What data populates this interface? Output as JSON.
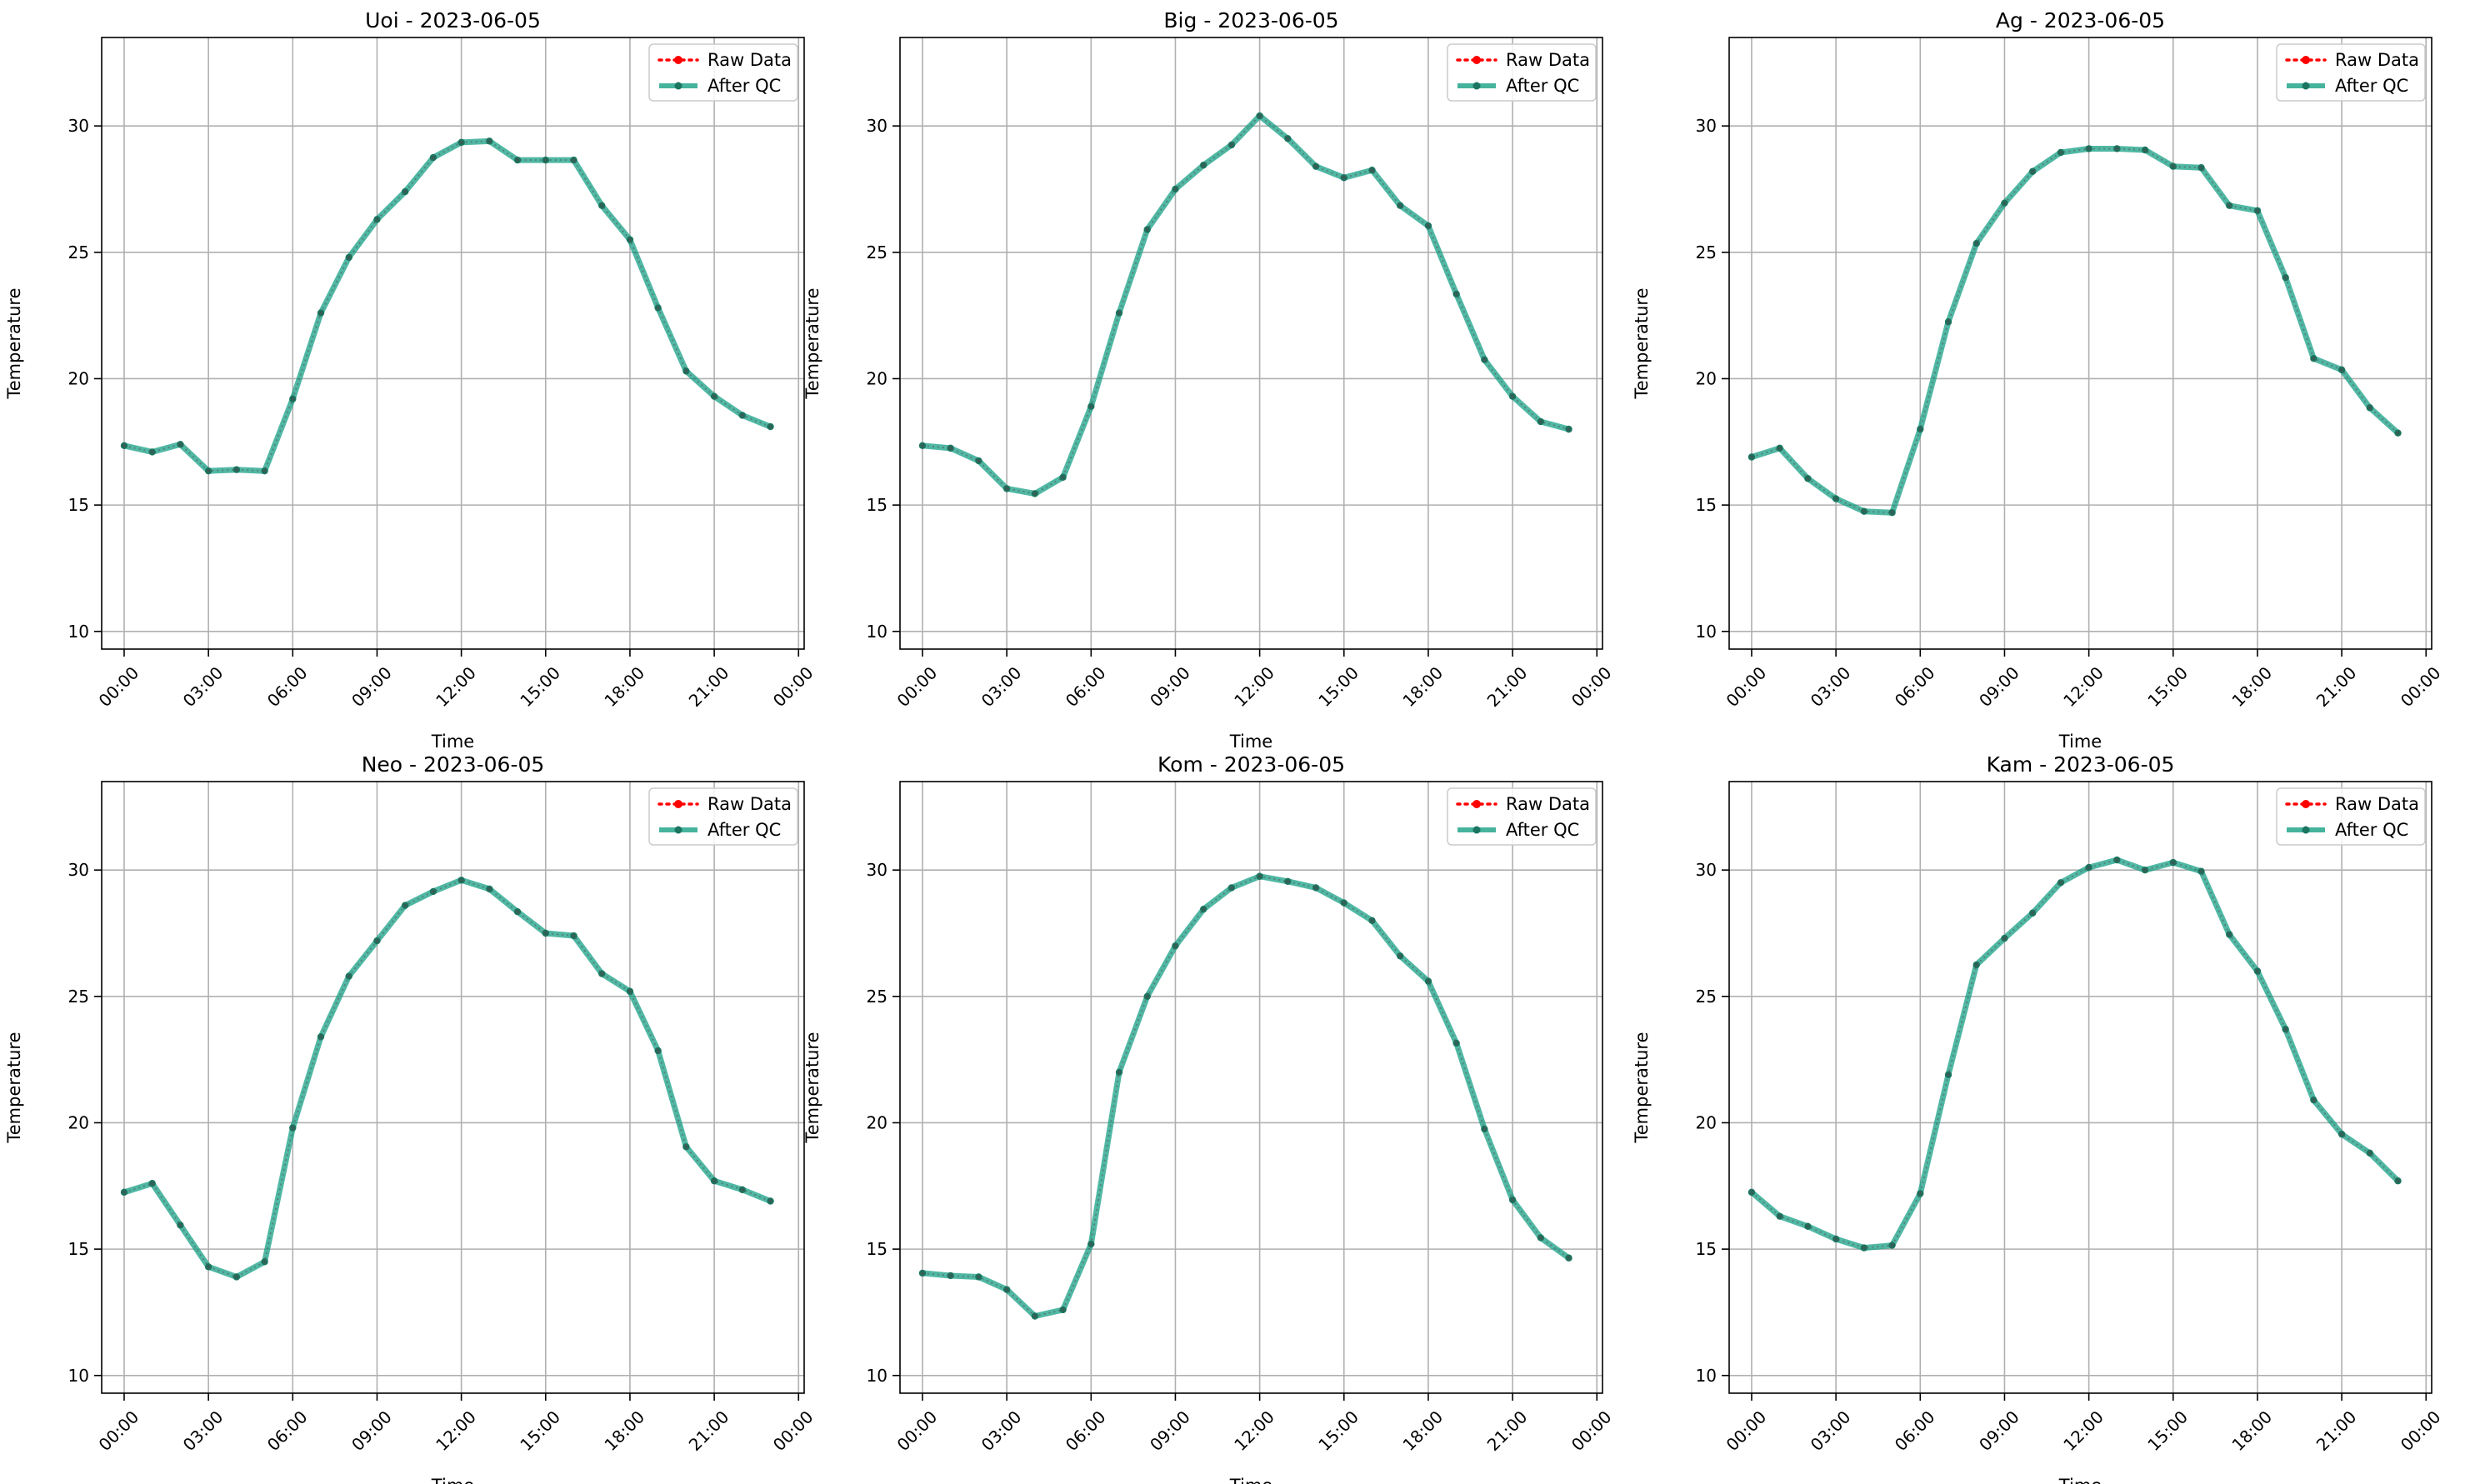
{
  "figure": {
    "date": "2023-06-05"
  },
  "chart_data": [
    {
      "type": "line",
      "title": "Uoi - 2023-06-05",
      "xlabel": "Time",
      "ylabel": "Temperature",
      "xlim": [
        -0.8,
        24.2
      ],
      "ylim": [
        9.3,
        33.5
      ],
      "x_ticks": [
        0,
        3,
        6,
        9,
        12,
        15,
        18,
        21,
        24
      ],
      "x_tick_labels": [
        "00:00",
        "03:00",
        "06:00",
        "09:00",
        "12:00",
        "15:00",
        "18:00",
        "21:00",
        "00:00"
      ],
      "y_ticks": [
        10,
        15,
        20,
        25,
        30
      ],
      "grid": true,
      "legend": "top-right",
      "x": [
        0,
        1,
        2,
        3,
        4,
        5,
        6,
        7,
        8,
        9,
        10,
        11,
        12,
        13,
        14,
        15,
        16,
        17,
        18,
        19,
        20,
        21,
        22,
        23
      ],
      "series": [
        {
          "name": "Raw Data",
          "style": "dotted",
          "color": "#ff0000",
          "values": [
            17.35,
            17.1,
            17.4,
            16.35,
            16.4,
            16.35,
            19.2,
            22.6,
            24.8,
            26.3,
            27.4,
            28.75,
            29.35,
            29.4,
            28.65,
            28.65,
            28.65,
            26.85,
            25.5,
            22.8,
            20.3,
            19.3,
            18.55,
            18.1
          ]
        },
        {
          "name": "After QC",
          "style": "solid",
          "color": "#16a085",
          "values": [
            17.35,
            17.1,
            17.4,
            16.35,
            16.4,
            16.35,
            19.2,
            22.6,
            24.8,
            26.3,
            27.4,
            28.75,
            29.35,
            29.4,
            28.65,
            28.65,
            28.65,
            26.85,
            25.5,
            22.8,
            20.3,
            19.3,
            18.55,
            18.1
          ]
        }
      ]
    },
    {
      "type": "line",
      "title": "Big - 2023-06-05",
      "xlabel": "Time",
      "ylabel": "Temperature",
      "xlim": [
        -0.8,
        24.2
      ],
      "ylim": [
        9.3,
        33.5
      ],
      "x_ticks": [
        0,
        3,
        6,
        9,
        12,
        15,
        18,
        21,
        24
      ],
      "x_tick_labels": [
        "00:00",
        "03:00",
        "06:00",
        "09:00",
        "12:00",
        "15:00",
        "18:00",
        "21:00",
        "00:00"
      ],
      "y_ticks": [
        10,
        15,
        20,
        25,
        30
      ],
      "grid": true,
      "legend": "top-right",
      "x": [
        0,
        1,
        2,
        3,
        4,
        5,
        6,
        7,
        8,
        9,
        10,
        11,
        12,
        13,
        14,
        15,
        16,
        17,
        18,
        19,
        20,
        21,
        22,
        23
      ],
      "series": [
        {
          "name": "Raw Data",
          "style": "dotted",
          "color": "#ff0000",
          "values": [
            17.35,
            17.25,
            16.75,
            15.65,
            15.45,
            16.1,
            18.9,
            22.6,
            25.9,
            27.5,
            28.45,
            29.25,
            30.4,
            29.5,
            28.4,
            27.95,
            28.25,
            26.85,
            26.05,
            23.35,
            20.75,
            19.3,
            18.3,
            18.0
          ]
        },
        {
          "name": "After QC",
          "style": "solid",
          "color": "#16a085",
          "values": [
            17.35,
            17.25,
            16.75,
            15.65,
            15.45,
            16.1,
            18.9,
            22.6,
            25.9,
            27.5,
            28.45,
            29.25,
            30.4,
            29.5,
            28.4,
            27.95,
            28.25,
            26.85,
            26.05,
            23.35,
            20.75,
            19.3,
            18.3,
            18.0
          ]
        }
      ]
    },
    {
      "type": "line",
      "title": "Ag - 2023-06-05",
      "xlabel": "Time",
      "ylabel": "Temperature",
      "xlim": [
        -0.8,
        24.2
      ],
      "ylim": [
        9.3,
        33.5
      ],
      "x_ticks": [
        0,
        3,
        6,
        9,
        12,
        15,
        18,
        21,
        24
      ],
      "x_tick_labels": [
        "00:00",
        "03:00",
        "06:00",
        "09:00",
        "12:00",
        "15:00",
        "18:00",
        "21:00",
        "00:00"
      ],
      "y_ticks": [
        10,
        15,
        20,
        25,
        30
      ],
      "grid": true,
      "legend": "top-right",
      "x": [
        0,
        1,
        2,
        3,
        4,
        5,
        6,
        7,
        8,
        9,
        10,
        11,
        12,
        13,
        14,
        15,
        16,
        17,
        18,
        19,
        20,
        21,
        22,
        23
      ],
      "series": [
        {
          "name": "Raw Data",
          "style": "dotted",
          "color": "#ff0000",
          "values": [
            16.9,
            17.25,
            16.05,
            15.25,
            14.75,
            14.7,
            18.0,
            22.25,
            25.35,
            26.95,
            28.2,
            28.95,
            29.1,
            29.1,
            29.05,
            28.4,
            28.35,
            26.85,
            26.65,
            24.0,
            20.8,
            20.35,
            18.85,
            17.85
          ]
        },
        {
          "name": "After QC",
          "style": "solid",
          "color": "#16a085",
          "values": [
            16.9,
            17.25,
            16.05,
            15.25,
            14.75,
            14.7,
            18.0,
            22.25,
            25.35,
            26.95,
            28.2,
            28.95,
            29.1,
            29.1,
            29.05,
            28.4,
            28.35,
            26.85,
            26.65,
            24.0,
            20.8,
            20.35,
            18.85,
            17.85
          ]
        }
      ]
    },
    {
      "type": "line",
      "title": "Neo - 2023-06-05",
      "xlabel": "Time",
      "ylabel": "Temperature",
      "xlim": [
        -0.8,
        24.2
      ],
      "ylim": [
        9.3,
        33.5
      ],
      "x_ticks": [
        0,
        3,
        6,
        9,
        12,
        15,
        18,
        21,
        24
      ],
      "x_tick_labels": [
        "00:00",
        "03:00",
        "06:00",
        "09:00",
        "12:00",
        "15:00",
        "18:00",
        "21:00",
        "00:00"
      ],
      "y_ticks": [
        10,
        15,
        20,
        25,
        30
      ],
      "grid": true,
      "legend": "top-right",
      "x": [
        0,
        1,
        2,
        3,
        4,
        5,
        6,
        7,
        8,
        9,
        10,
        11,
        12,
        13,
        14,
        15,
        16,
        17,
        18,
        19,
        20,
        21,
        22,
        23
      ],
      "series": [
        {
          "name": "Raw Data",
          "style": "dotted",
          "color": "#ff0000",
          "values": [
            17.25,
            17.6,
            15.95,
            14.3,
            13.9,
            14.5,
            19.8,
            23.4,
            25.8,
            27.2,
            28.6,
            29.15,
            29.6,
            29.25,
            28.35,
            27.5,
            27.4,
            25.9,
            25.2,
            22.85,
            19.05,
            17.7,
            17.35,
            16.9
          ]
        },
        {
          "name": "After QC",
          "style": "solid",
          "color": "#16a085",
          "values": [
            17.25,
            17.6,
            15.95,
            14.3,
            13.9,
            14.5,
            19.8,
            23.4,
            25.8,
            27.2,
            28.6,
            29.15,
            29.6,
            29.25,
            28.35,
            27.5,
            27.4,
            25.9,
            25.2,
            22.85,
            19.05,
            17.7,
            17.35,
            16.9
          ]
        }
      ]
    },
    {
      "type": "line",
      "title": "Kom - 2023-06-05",
      "xlabel": "Time",
      "ylabel": "Temperature",
      "xlim": [
        -0.8,
        24.2
      ],
      "ylim": [
        9.3,
        33.5
      ],
      "x_ticks": [
        0,
        3,
        6,
        9,
        12,
        15,
        18,
        21,
        24
      ],
      "x_tick_labels": [
        "00:00",
        "03:00",
        "06:00",
        "09:00",
        "12:00",
        "15:00",
        "18:00",
        "21:00",
        "00:00"
      ],
      "y_ticks": [
        10,
        15,
        20,
        25,
        30
      ],
      "grid": true,
      "legend": "top-right",
      "x": [
        0,
        1,
        2,
        3,
        4,
        5,
        6,
        7,
        8,
        9,
        10,
        11,
        12,
        13,
        14,
        15,
        16,
        17,
        18,
        19,
        20,
        21,
        22,
        23
      ],
      "series": [
        {
          "name": "Raw Data",
          "style": "dotted",
          "color": "#ff0000",
          "values": [
            14.05,
            13.95,
            13.9,
            13.4,
            12.35,
            12.6,
            15.2,
            22.0,
            25.0,
            27.0,
            28.45,
            29.3,
            29.75,
            29.55,
            29.3,
            28.7,
            28.0,
            26.6,
            25.6,
            23.15,
            19.75,
            16.95,
            15.45,
            14.65
          ]
        },
        {
          "name": "After QC",
          "style": "solid",
          "color": "#16a085",
          "values": [
            14.05,
            13.95,
            13.9,
            13.4,
            12.35,
            12.6,
            15.2,
            22.0,
            25.0,
            27.0,
            28.45,
            29.3,
            29.75,
            29.55,
            29.3,
            28.7,
            28.0,
            26.6,
            25.6,
            23.15,
            19.75,
            16.95,
            15.45,
            14.65
          ]
        }
      ]
    },
    {
      "type": "line",
      "title": "Kam - 2023-06-05",
      "xlabel": "Time",
      "ylabel": "Temperature",
      "xlim": [
        -0.8,
        24.2
      ],
      "ylim": [
        9.3,
        33.5
      ],
      "x_ticks": [
        0,
        3,
        6,
        9,
        12,
        15,
        18,
        21,
        24
      ],
      "x_tick_labels": [
        "00:00",
        "03:00",
        "06:00",
        "09:00",
        "12:00",
        "15:00",
        "18:00",
        "21:00",
        "00:00"
      ],
      "y_ticks": [
        10,
        15,
        20,
        25,
        30
      ],
      "grid": true,
      "legend": "top-right",
      "x": [
        0,
        1,
        2,
        3,
        4,
        5,
        6,
        7,
        8,
        9,
        10,
        11,
        12,
        13,
        14,
        15,
        16,
        17,
        18,
        19,
        20,
        21,
        22,
        23
      ],
      "series": [
        {
          "name": "Raw Data",
          "style": "dotted",
          "color": "#ff0000",
          "values": [
            17.25,
            16.3,
            15.9,
            15.4,
            15.05,
            15.15,
            17.2,
            21.9,
            26.25,
            27.3,
            28.3,
            29.5,
            30.1,
            30.4,
            30.0,
            30.3,
            29.95,
            27.45,
            26.0,
            23.7,
            20.9,
            19.55,
            18.8,
            17.7
          ]
        },
        {
          "name": "After QC",
          "style": "solid",
          "color": "#16a085",
          "values": [
            17.25,
            16.3,
            15.9,
            15.4,
            15.05,
            15.15,
            17.2,
            21.9,
            26.25,
            27.3,
            28.3,
            29.5,
            30.1,
            30.4,
            30.0,
            30.3,
            29.95,
            27.45,
            26.0,
            23.7,
            20.9,
            19.55,
            18.8,
            17.7
          ]
        }
      ]
    }
  ]
}
